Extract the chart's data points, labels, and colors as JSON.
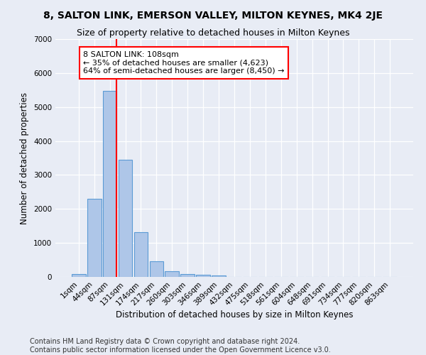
{
  "title": "8, SALTON LINK, EMERSON VALLEY, MILTON KEYNES, MK4 2JE",
  "subtitle": "Size of property relative to detached houses in Milton Keynes",
  "xlabel": "Distribution of detached houses by size in Milton Keynes",
  "ylabel": "Number of detached properties",
  "footer_line1": "Contains HM Land Registry data © Crown copyright and database right 2024.",
  "footer_line2": "Contains public sector information licensed under the Open Government Licence v3.0.",
  "bar_labels": [
    "1sqm",
    "44sqm",
    "87sqm",
    "131sqm",
    "174sqm",
    "217sqm",
    "260sqm",
    "303sqm",
    "346sqm",
    "389sqm",
    "432sqm",
    "475sqm",
    "518sqm",
    "561sqm",
    "604sqm",
    "648sqm",
    "691sqm",
    "734sqm",
    "777sqm",
    "820sqm",
    "863sqm"
  ],
  "bar_values": [
    80,
    2300,
    5480,
    3450,
    1320,
    470,
    160,
    90,
    55,
    35,
    0,
    0,
    0,
    0,
    0,
    0,
    0,
    0,
    0,
    0,
    0
  ],
  "bar_color": "#aec6e8",
  "bar_edge_color": "#5b9bd5",
  "vline_color": "red",
  "vline_xindex": 2,
  "annotation_text": "8 SALTON LINK: 108sqm\n← 35% of detached houses are smaller (4,623)\n64% of semi-detached houses are larger (8,450) →",
  "annotation_box_color": "white",
  "annotation_box_edge_color": "red",
  "ylim": [
    0,
    7000
  ],
  "yticks": [
    0,
    1000,
    2000,
    3000,
    4000,
    5000,
    6000,
    7000
  ],
  "bg_color": "#e8ecf5",
  "plot_bg_color": "#e8ecf5",
  "grid_color": "white",
  "title_fontsize": 10,
  "subtitle_fontsize": 9,
  "axis_label_fontsize": 8.5,
  "tick_fontsize": 7.5,
  "footer_fontsize": 7,
  "annotation_fontsize": 8
}
